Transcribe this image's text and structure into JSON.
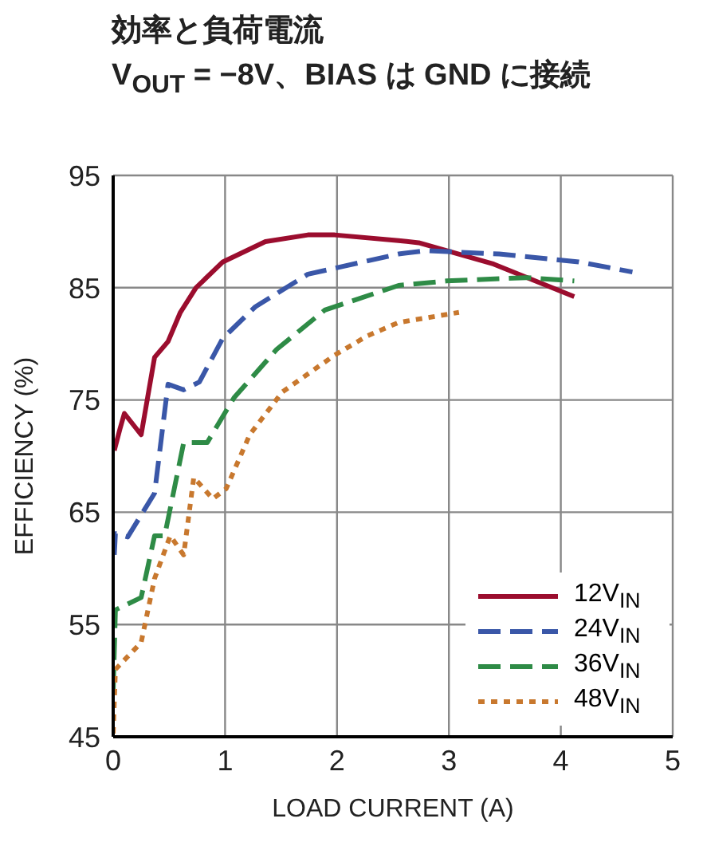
{
  "chart_data": {
    "type": "line",
    "title": "効率と負荷電流",
    "subtitle": "V$_{OUT}$ = −8V、BIAS は GND に接続",
    "xlabel": "LOAD CURRENT (A)",
    "ylabel": "EFFICIENCY (%)",
    "xlim": [
      0,
      5
    ],
    "xticks": [
      0,
      1,
      2,
      3,
      4,
      5
    ],
    "ylim": [
      45,
      95
    ],
    "yticks": [
      45,
      55,
      65,
      75,
      85,
      95
    ],
    "grid": true,
    "legend": "bottom right",
    "marker": "none",
    "series": [
      {
        "name": "12V$_{IN}$",
        "color": "#9b0d2e",
        "line_style": "solid",
        "x": [
          0.01,
          0.06,
          0.1,
          0.25,
          0.37,
          0.49,
          0.6,
          0.74,
          0.98,
          1.36,
          1.74,
          1.98,
          2.55,
          2.73,
          3.4,
          4.12
        ],
        "values": [
          70.5,
          72.4,
          73.8,
          71.9,
          78.8,
          80.2,
          82.8,
          85,
          87.3,
          89.1,
          89.7,
          89.7,
          89.2,
          89,
          87.1,
          84.2
        ]
      },
      {
        "name": "24V$_{IN}$",
        "color": "#3a57a8",
        "line_style": "dashed",
        "x": [
          0.01,
          0.02,
          0.13,
          0.37,
          0.49,
          0.63,
          0.77,
          0.98,
          1.27,
          1.74,
          2.55,
          2.79,
          3.45,
          4.16,
          4.64
        ],
        "values": [
          61.2,
          63.1,
          62.8,
          66.7,
          76.4,
          75.9,
          76.6,
          80.5,
          83.3,
          86.2,
          88,
          88.3,
          88,
          87.3,
          86.4
        ]
      },
      {
        "name": "36V$_{IN}$",
        "color": "#2e8b46",
        "line_style": "dashed",
        "x": [
          0,
          0.02,
          0.25,
          0.37,
          0.46,
          0.63,
          0.84,
          1.08,
          1.46,
          1.89,
          2.55,
          2.98,
          3.69,
          4.12
        ],
        "values": [
          49,
          56.3,
          57.4,
          62.9,
          62.9,
          71.2,
          71.2,
          75.2,
          79.5,
          83,
          85.2,
          85.6,
          85.9,
          85.6
        ]
      },
      {
        "name": "48V$_{IN}$",
        "color": "#c8782e",
        "line_style": "dotted",
        "x": [
          0,
          0.02,
          0.25,
          0.37,
          0.51,
          0.63,
          0.72,
          0.89,
          1.01,
          1.22,
          1.51,
          1.98,
          2.27,
          2.55,
          3.09
        ],
        "values": [
          45.3,
          51,
          53.4,
          59.1,
          62.9,
          61.2,
          68.1,
          66.2,
          67.1,
          71.9,
          75.7,
          79,
          80.7,
          81.9,
          82.8
        ]
      }
    ]
  }
}
